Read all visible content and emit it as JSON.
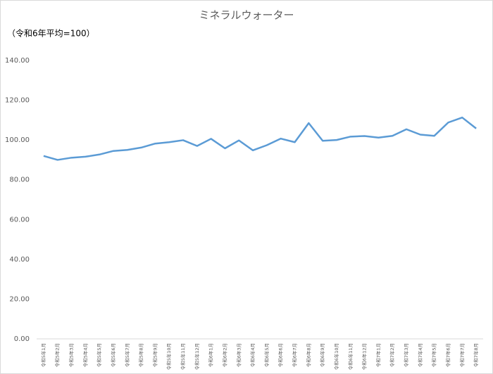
{
  "chart_data": {
    "type": "line",
    "title": "ミネラルウォーター",
    "subtitle": "（令和6年平均=100）",
    "categories": [
      "令和5年1月",
      "令和5年2月",
      "令和5年3月",
      "令和5年4月",
      "令和5年5月",
      "令和5年6月",
      "令和5年7月",
      "令和5年8月",
      "令和5年9月",
      "令和5年10月",
      "令和5年11月",
      "令和5年12月",
      "令和6年1月",
      "令和6年2月",
      "令和6年3月",
      "令和6年4月",
      "令和6年5月",
      "令和6年6月",
      "令和6年7月",
      "令和6年8月",
      "令和6年9月",
      "令和6年10月",
      "令和6年11月",
      "令和6年12月",
      "令和7年1月",
      "令和7年2月",
      "令和7年3月",
      "令和7年4月",
      "令和7年5月",
      "令和7年6月",
      "令和7年7月",
      "令和7年8月"
    ],
    "values": [
      92.0,
      90.0,
      91.1,
      91.6,
      92.7,
      94.5,
      95.0,
      96.2,
      98.2,
      98.9,
      99.9,
      97.0,
      100.6,
      95.8,
      99.8,
      94.8,
      97.4,
      100.7,
      98.9,
      108.5,
      99.6,
      100.0,
      101.7,
      102.0,
      101.2,
      102.1,
      105.4,
      102.7,
      102.1,
      108.8,
      111.3,
      105.8
    ],
    "color": "#5b9bd5",
    "ylim": [
      0,
      140
    ],
    "yticks": [
      {
        "value": 0,
        "label": "0.00"
      },
      {
        "value": 20,
        "label": "20.00"
      },
      {
        "value": 40,
        "label": "40.00"
      },
      {
        "value": 60,
        "label": "60.00"
      },
      {
        "value": 80,
        "label": "80.00"
      },
      {
        "value": 100,
        "label": "100.00"
      },
      {
        "value": 120,
        "label": "120.00"
      },
      {
        "value": 140,
        "label": "140.00"
      }
    ],
    "grid": false
  }
}
